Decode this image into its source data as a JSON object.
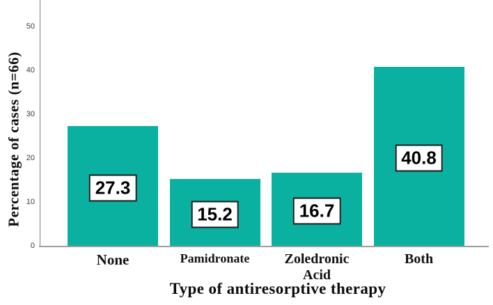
{
  "chart_data": {
    "type": "bar",
    "title": "",
    "xlabel": "Type of  antiresorptive therapy",
    "ylabel": "Percentage of cases (n=66)",
    "ylim": [
      0,
      50
    ],
    "yticks": [
      "0",
      "10",
      "20",
      "30",
      "40",
      "50"
    ],
    "ytick_values": [
      0,
      10,
      20,
      30,
      40,
      50
    ],
    "grid": false,
    "legend": false,
    "bar_color": "#0ab1a0",
    "categories": [
      "None",
      "Pamidronate",
      "Zoledronic Acid",
      "Both"
    ],
    "category_lines": [
      [
        "None"
      ],
      [
        "Pamidronate"
      ],
      [
        "Zoledronic",
        "Acid"
      ],
      [
        "Both"
      ]
    ],
    "values": [
      27.3,
      15.2,
      16.7,
      40.8
    ],
    "value_labels": [
      "27.3",
      "15.2",
      "16.7",
      "40.8"
    ]
  }
}
